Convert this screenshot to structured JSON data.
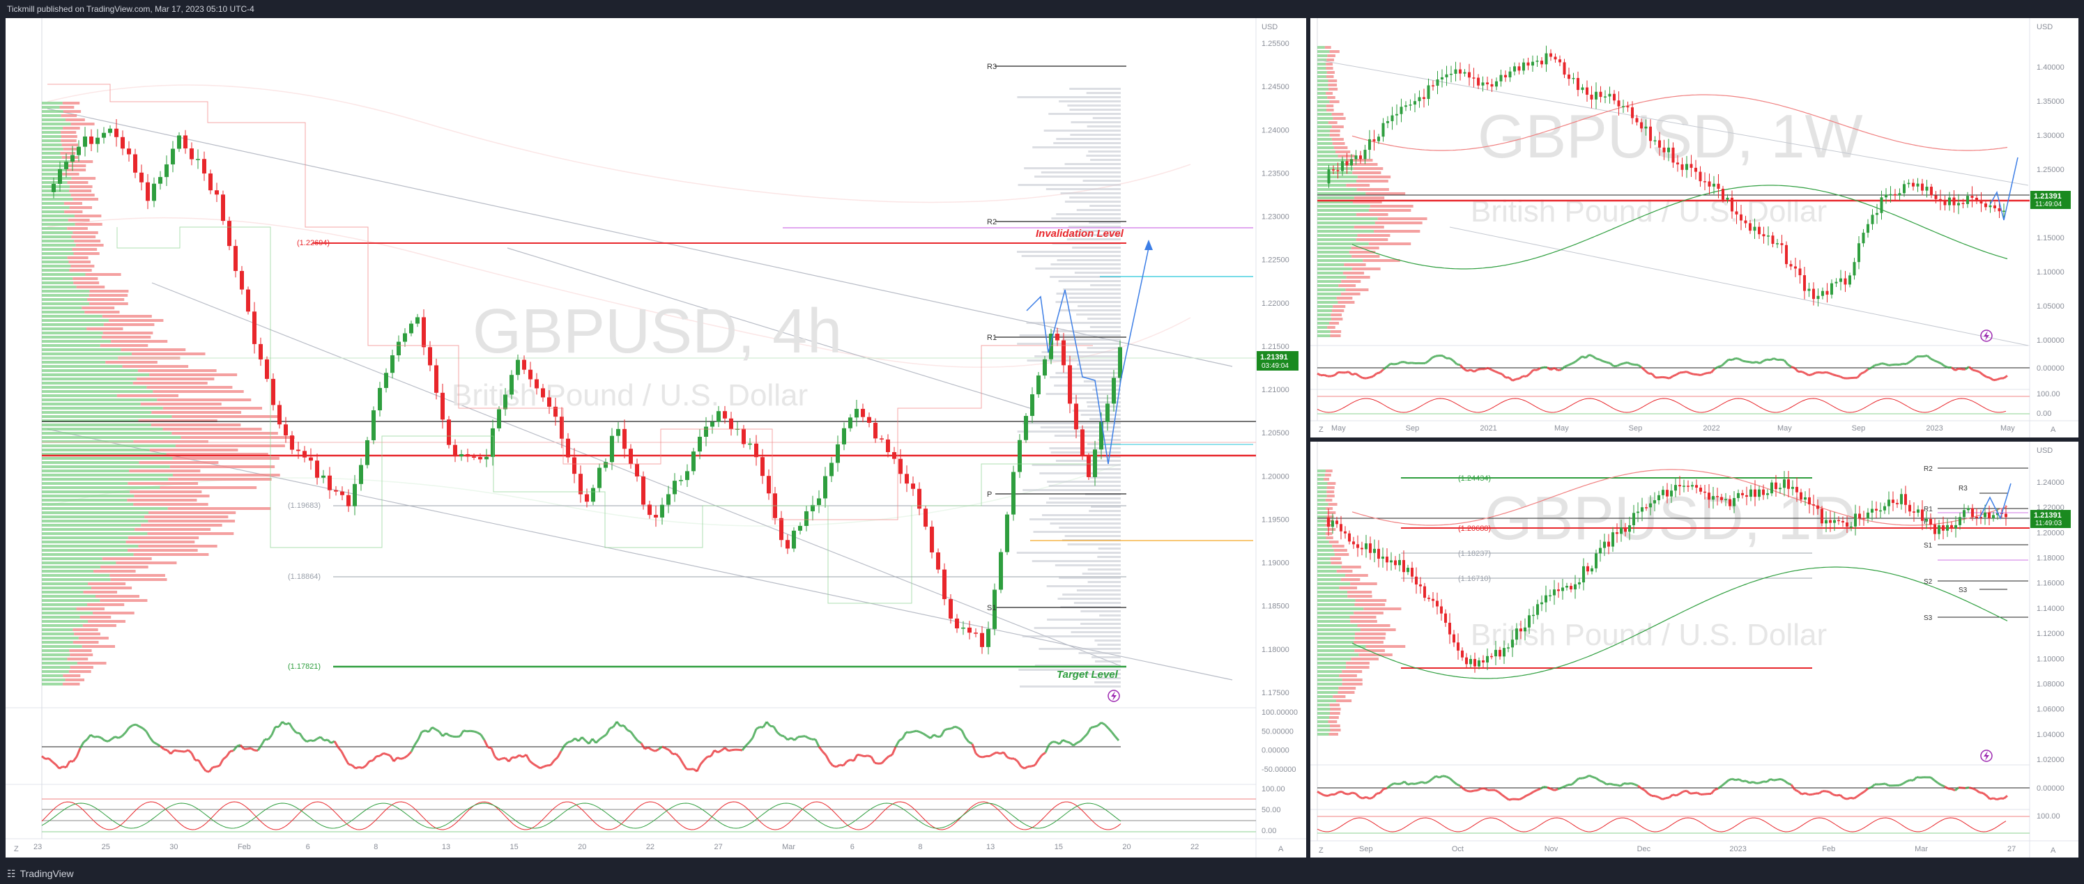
{
  "header": {
    "publisher_text": "Tickmill published on TradingView.com, Mar 17, 2023 05:10 UTC-4"
  },
  "footer": {
    "brand": "TradingView",
    "brand_icon": "tradingview-logo-icon"
  },
  "colors": {
    "bull": "#2e9e3e",
    "bear": "#e8262b",
    "green_profile": "#7ccf84",
    "red_profile": "#f08080",
    "price_tag": "#1a8a1f"
  },
  "chart_4h": {
    "watermark_symbol": "GBPUSD, 4h",
    "watermark_desc": "British Pound / U.S. Dollar",
    "currency": "USD",
    "price_tag": "1.21391",
    "countdown": "03:49:04",
    "labels": {
      "invalidation": "Invalidation Level",
      "target": "Target  Level",
      "r3": "R3",
      "r2": "R2",
      "r1": "R1",
      "p": "P",
      "s1": "S1",
      "lvl_22694": "(1.22694)",
      "lvl_19683": "(1.19683)",
      "lvl_18864": "(1.18864)",
      "lvl_17821": "(1.17821)"
    },
    "price_ticks": [
      "1.25500",
      "1.24500",
      "1.24000",
      "1.23500",
      "1.23000",
      "1.22500",
      "1.22000",
      "1.21500",
      "1.21000",
      "1.20500",
      "1.20000",
      "1.19500",
      "1.19000",
      "1.18500",
      "1.18000",
      "1.17500"
    ],
    "time_ticks": [
      "23",
      "25",
      "30",
      "Feb",
      "6",
      "8",
      "13",
      "15",
      "20",
      "22",
      "27",
      "Mar",
      "6",
      "8",
      "13",
      "15",
      "20",
      "22"
    ],
    "osc1_ticks": [
      "100.00000",
      "50.00000",
      "0.00000",
      "-50.00000"
    ],
    "osc2_ticks": [
      "100.00",
      "50.00",
      "0.00"
    ],
    "corner_z": "Z",
    "corner_a": "A"
  },
  "chart_1w": {
    "watermark_symbol": "GBPUSD, 1W",
    "watermark_desc": "British Pound / U.S. Dollar",
    "currency": "USD",
    "price_tag": "1.21391",
    "countdown": "11:49:04",
    "price_ticks": [
      "1.40000",
      "1.35000",
      "1.30000",
      "1.25000",
      "1.20000",
      "1.15000",
      "1.10000",
      "1.05000",
      "1.00000"
    ],
    "time_ticks": [
      "May",
      "Sep",
      "2021",
      "May",
      "Sep",
      "2022",
      "May",
      "Sep",
      "2023",
      "May"
    ],
    "osc1_ticks": [
      "0.00000"
    ],
    "osc2_ticks": [
      "100.00",
      "0.00"
    ],
    "corner_z": "Z",
    "corner_a": "A"
  },
  "chart_1d": {
    "watermark_symbol": "GBPUSD, 1D",
    "watermark_desc": "British Pound / U.S. Dollar",
    "currency": "USD",
    "price_tag": "1.21391",
    "countdown": "11:49:03",
    "labels": {
      "lvl_24434": "(1.24434)",
      "lvl_20688": "(1.20688)",
      "lvl_18237": "(1.18237)",
      "lvl_16710": "(1.16710)",
      "r3": "R3",
      "r2": "R2",
      "r1": "R1",
      "p": "P",
      "s1": "S1",
      "s2": "S2",
      "s3": "S3"
    },
    "price_ticks": [
      "1.24000",
      "1.22000",
      "1.20000",
      "1.18000",
      "1.16000",
      "1.14000",
      "1.12000",
      "1.10000",
      "1.08000",
      "1.06000",
      "1.04000",
      "1.02000"
    ],
    "time_ticks": [
      "Sep",
      "Oct",
      "Nov",
      "Dec",
      "2023",
      "Feb",
      "Mar",
      "27"
    ],
    "osc1_ticks": [
      "0.00000"
    ],
    "osc2_ticks": [
      "100.00"
    ],
    "corner_z": "Z",
    "corner_a": "A"
  }
}
